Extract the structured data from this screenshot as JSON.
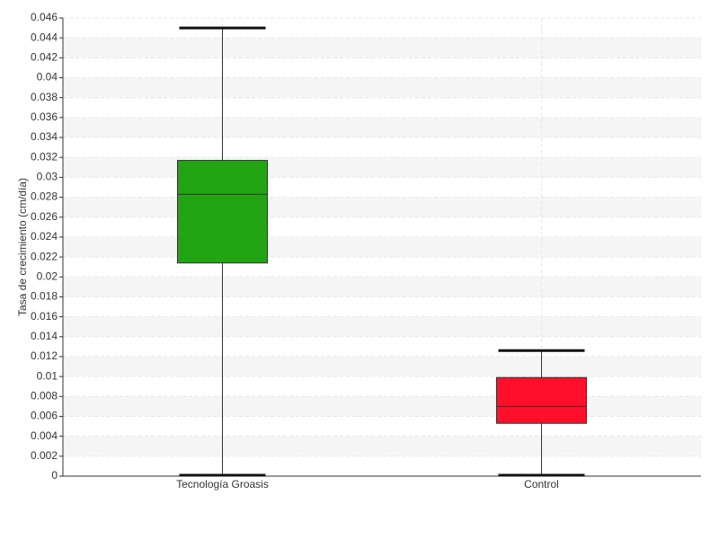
{
  "chart_data": {
    "type": "box",
    "y_label": "Tasa de crecimiento (cm/día)",
    "categories": [
      "Tecnología Groasis",
      "Control"
    ],
    "series": [
      {
        "color": "#22a512",
        "min": 0,
        "q1": 0.0214,
        "median": 0.0283,
        "q3": 0.0317,
        "max": 0.045
      },
      {
        "color": "#ff0f2a",
        "min": 0,
        "q1": 0.0053,
        "median": 0.007,
        "q3": 0.0099,
        "max": 0.0126
      }
    ],
    "ylim": [
      0,
      0.046
    ],
    "yticks": [
      0,
      0.002,
      0.004,
      0.006,
      0.008,
      0.01,
      0.012,
      0.014,
      0.016,
      0.018,
      0.02,
      0.022,
      0.024,
      0.026,
      0.028,
      0.03,
      0.032,
      0.034,
      0.036,
      0.038,
      0.04,
      0.042,
      0.044,
      0.046
    ],
    "grid": true
  }
}
